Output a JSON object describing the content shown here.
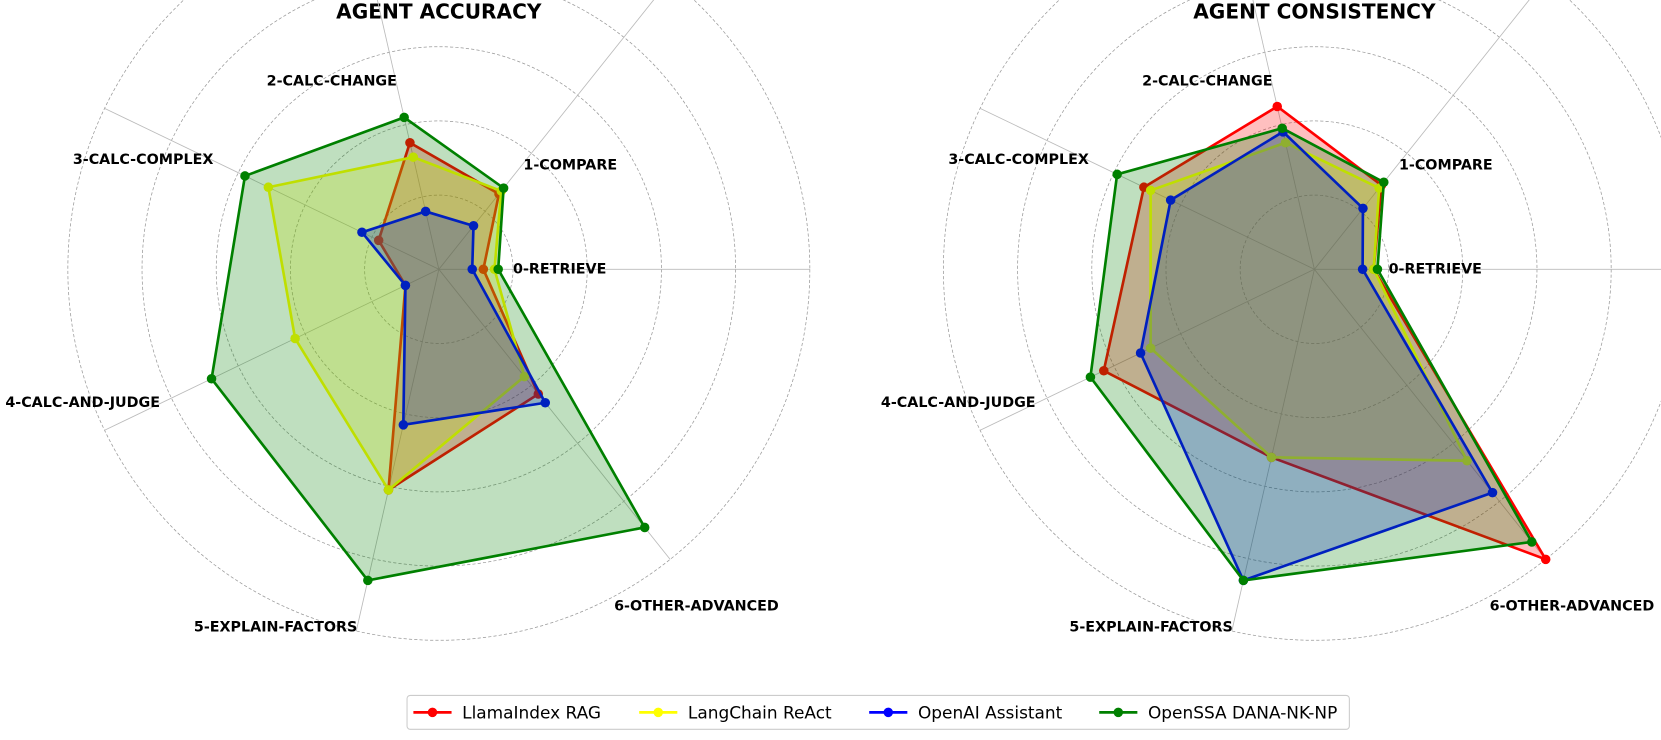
{
  "chart_data": [
    {
      "type": "radar",
      "title": "AGENT ACCURACY",
      "categories": [
        "0-RETRIEVE",
        "1-COMPARE",
        "2-CALC-CHANGE",
        "3-CALC-COMPLEX",
        "4-CALC-AND-JUDGE",
        "5-EXPLAIN-FACTORS",
        "6-OTHER-ADVANCED"
      ],
      "rlim": [
        0,
        1
      ],
      "rticks": [
        0.2,
        0.4,
        0.6,
        0.8,
        1.0
      ],
      "grid": true,
      "series": [
        {
          "name": "LlamaIndex RAG",
          "color": "#ff0000",
          "values": [
            0.12,
            0.26,
            0.35,
            0.18,
            0.1,
            0.61,
            0.43
          ]
        },
        {
          "name": "LangChain ReAct",
          "color": "#ffff00",
          "values": [
            0.15,
            0.27,
            0.31,
            0.51,
            0.43,
            0.61,
            0.37
          ]
        },
        {
          "name": "OpenAI Assistant",
          "color": "#0000ff",
          "values": [
            0.09,
            0.15,
            0.16,
            0.23,
            0.1,
            0.43,
            0.46
          ]
        },
        {
          "name": "OpenSSA DANA-NK-NP",
          "color": "#008000",
          "values": [
            0.16,
            0.28,
            0.42,
            0.58,
            0.68,
            0.86,
            0.89
          ]
        }
      ]
    },
    {
      "type": "radar",
      "title": "AGENT CONSISTENCY",
      "categories": [
        "0-RETRIEVE",
        "1-COMPARE",
        "2-CALC-CHANGE",
        "3-CALC-COMPLEX",
        "4-CALC-AND-JUDGE",
        "5-EXPLAIN-FACTORS",
        "6-OTHER-ADVANCED"
      ],
      "rlim": [
        0,
        1
      ],
      "rticks": [
        0.2,
        0.4,
        0.6,
        0.8,
        1.0
      ],
      "grid": true,
      "series": [
        {
          "name": "LlamaIndex RAG",
          "color": "#ff0000",
          "values": [
            0.16,
            0.29,
            0.45,
            0.51,
            0.63,
            0.52,
            1.0
          ]
        },
        {
          "name": "LangChain ReAct",
          "color": "#ffff00",
          "values": [
            0.16,
            0.28,
            0.35,
            0.49,
            0.49,
            0.52,
            0.66
          ]
        },
        {
          "name": "OpenAI Assistant",
          "color": "#0000ff",
          "values": [
            0.13,
            0.21,
            0.38,
            0.43,
            0.52,
            0.86,
            0.77
          ]
        },
        {
          "name": "OpenSSA DANA-NK-NP",
          "color": "#008000",
          "values": [
            0.17,
            0.3,
            0.39,
            0.59,
            0.67,
            0.86,
            0.94
          ]
        }
      ]
    }
  ]
}
